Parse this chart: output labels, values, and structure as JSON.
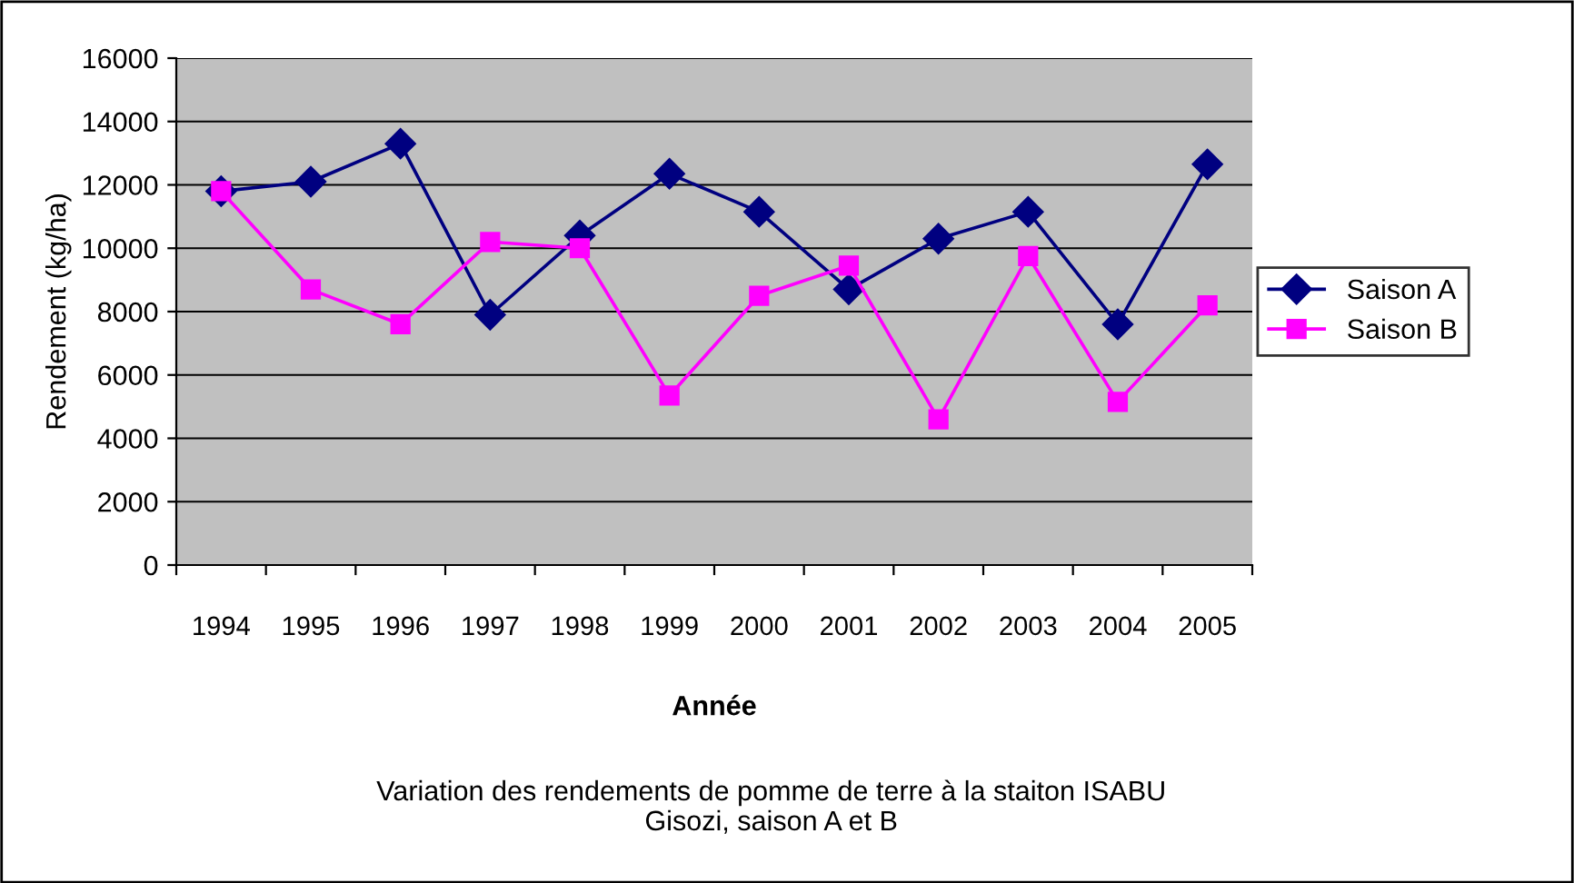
{
  "chart_data": {
    "type": "line",
    "xlabel": "Année",
    "ylabel": "Rendement (kg/ha)",
    "annotations": [
      "Variation des rendements de pomme de terre à la staiton ISABU\nGisozi, saison A et B"
    ],
    "categories": [
      "1994",
      "1995",
      "1996",
      "1997",
      "1998",
      "1999",
      "2000",
      "2001",
      "2002",
      "2003",
      "2004",
      "2005"
    ],
    "series": [
      {
        "name": "Saison A",
        "color": "#000080",
        "marker": "diamond",
        "values": [
          11800,
          12100,
          13300,
          7900,
          10400,
          12350,
          11150,
          8700,
          10300,
          11150,
          7600,
          12650
        ]
      },
      {
        "name": "Saison B",
        "color": "#ff00ff",
        "marker": "square",
        "values": [
          11800,
          8700,
          7600,
          10200,
          10000,
          5350,
          8500,
          9450,
          4600,
          9750,
          5150,
          8200
        ]
      }
    ],
    "ylim": [
      0,
      16000
    ],
    "yticks": [
      0,
      2000,
      4000,
      6000,
      8000,
      10000,
      12000,
      14000,
      16000
    ],
    "grid": "y",
    "legend": "right",
    "line_style": "solid"
  }
}
